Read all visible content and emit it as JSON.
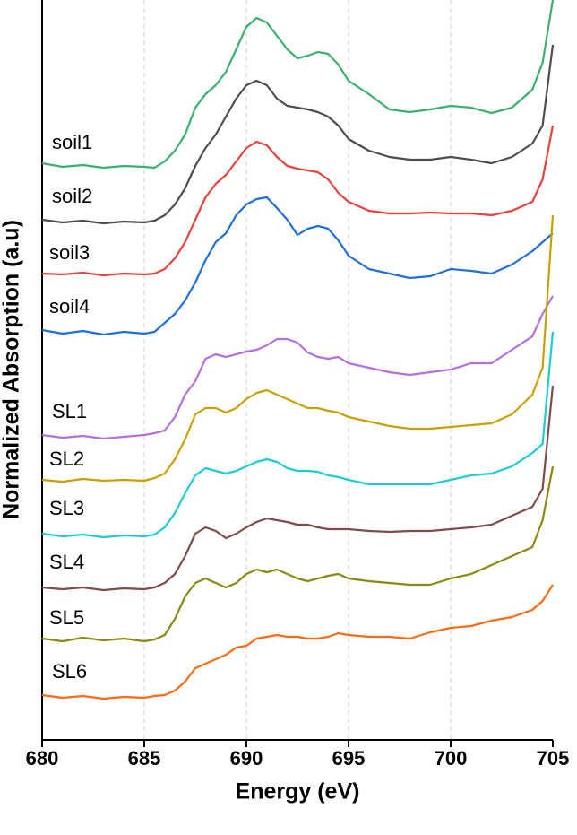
{
  "chart_data": {
    "type": "line",
    "x_label": "Energy (eV)",
    "y_label": "Normalized Absorption (a.u)",
    "xlim": [
      680,
      705
    ],
    "xticks": [
      680,
      685,
      690,
      695,
      700,
      705
    ],
    "ylim": [
      0,
      825
    ],
    "grid": true,
    "x": [
      680,
      681,
      682,
      683,
      684,
      685,
      685.5,
      686,
      686.5,
      687,
      687.5,
      688,
      688.5,
      689,
      689.5,
      690,
      690.5,
      691,
      691.5,
      692,
      692.5,
      693,
      693.5,
      694,
      694.5,
      695,
      696,
      697,
      698,
      699,
      700,
      701,
      702,
      703,
      704,
      704.5,
      705
    ],
    "series": [
      {
        "name": "soil1",
        "color": "#3aaf6f",
        "values": [
          643,
          639,
          641,
          638,
          640,
          639,
          638,
          645,
          657,
          675,
          705,
          720,
          730,
          745,
          770,
          795,
          805,
          800,
          785,
          770,
          760,
          763,
          767,
          765,
          753,
          735,
          720,
          703,
          700,
          703,
          707,
          705,
          699,
          705,
          725,
          755,
          825
        ]
      },
      {
        "name": "soil2",
        "color": "#4d4d4d",
        "values": [
          580,
          577,
          579,
          576,
          578,
          577,
          579,
          585,
          597,
          615,
          640,
          660,
          675,
          695,
          715,
          730,
          735,
          730,
          715,
          707,
          705,
          703,
          700,
          695,
          685,
          670,
          657,
          650,
          647,
          647,
          650,
          647,
          643,
          650,
          665,
          685,
          775
        ]
      },
      {
        "name": "soil3",
        "color": "#e8423f",
        "values": [
          520,
          519,
          521,
          518,
          520,
          519,
          520,
          525,
          537,
          555,
          580,
          605,
          620,
          630,
          645,
          660,
          667,
          663,
          650,
          640,
          637,
          635,
          633,
          625,
          610,
          600,
          590,
          587,
          587,
          588,
          587,
          587,
          585,
          590,
          600,
          625,
          685
        ]
      },
      {
        "name": "soil4",
        "color": "#1f6fd6",
        "values": [
          457,
          453,
          456,
          452,
          455,
          453,
          455,
          465,
          475,
          490,
          510,
          535,
          555,
          565,
          585,
          597,
          603,
          605,
          593,
          580,
          563,
          570,
          573,
          570,
          557,
          540,
          525,
          520,
          515,
          517,
          525,
          523,
          520,
          530,
          545,
          555,
          565
        ]
      },
      {
        "name": "SL1",
        "color": "#b46fdc",
        "values": [
          340,
          337,
          339,
          336,
          338,
          340,
          342,
          345,
          360,
          385,
          400,
          425,
          430,
          427,
          430,
          433,
          435,
          440,
          447,
          447,
          443,
          432,
          427,
          425,
          427,
          420,
          415,
          410,
          407,
          410,
          413,
          420,
          420,
          435,
          450,
          475,
          495
        ]
      },
      {
        "name": "SL2",
        "color": "#c8a000",
        "values": [
          290,
          288,
          291,
          289,
          290,
          289,
          292,
          297,
          313,
          335,
          363,
          370,
          370,
          365,
          370,
          380,
          387,
          390,
          385,
          380,
          375,
          370,
          370,
          367,
          365,
          360,
          355,
          350,
          347,
          347,
          349,
          351,
          353,
          363,
          385,
          415,
          585
        ]
      },
      {
        "name": "SL3",
        "color": "#1ccdd0",
        "values": [
          230,
          227,
          229,
          226,
          228,
          227,
          229,
          237,
          253,
          275,
          295,
          303,
          300,
          297,
          300,
          305,
          310,
          313,
          310,
          303,
          300,
          300,
          299,
          295,
          293,
          290,
          285,
          285,
          285,
          285,
          290,
          295,
          297,
          305,
          320,
          330,
          455
        ]
      },
      {
        "name": "SL4",
        "color": "#7f4b4b",
        "values": [
          170,
          168,
          170,
          167,
          169,
          168,
          170,
          175,
          185,
          205,
          230,
          237,
          233,
          225,
          230,
          237,
          243,
          247,
          245,
          243,
          240,
          240,
          237,
          235,
          235,
          235,
          233,
          232,
          233,
          233,
          235,
          237,
          240,
          250,
          260,
          280,
          395
        ]
      },
      {
        "name": "SL5",
        "color": "#8a8a10",
        "values": [
          113,
          110,
          114,
          111,
          113,
          110,
          112,
          117,
          135,
          160,
          175,
          180,
          175,
          170,
          175,
          185,
          190,
          187,
          190,
          185,
          180,
          177,
          180,
          183,
          185,
          180,
          177,
          175,
          173,
          173,
          180,
          185,
          195,
          205,
          215,
          245,
          305
        ]
      },
      {
        "name": "SL6",
        "color": "#ff6a13",
        "values": [
          50,
          47,
          49,
          46,
          48,
          47,
          49,
          50,
          55,
          65,
          80,
          85,
          90,
          95,
          103,
          105,
          113,
          115,
          117,
          115,
          115,
          113,
          113,
          115,
          119,
          117,
          115,
          115,
          113,
          120,
          125,
          127,
          133,
          137,
          145,
          155,
          173
        ]
      }
    ]
  }
}
